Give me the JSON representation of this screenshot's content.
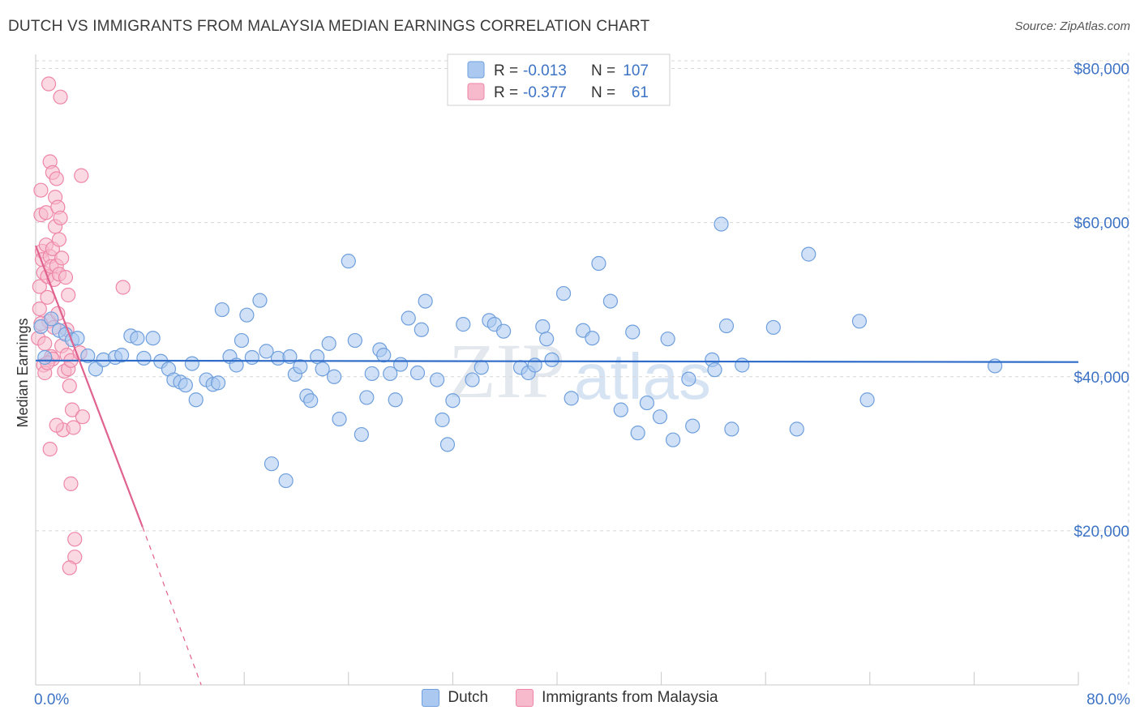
{
  "title": "DUTCH VS IMMIGRANTS FROM MALAYSIA MEDIAN EARNINGS CORRELATION CHART",
  "source": "Source: ZipAtlas.com",
  "watermark": {
    "zip": "ZIP",
    "atlas": "atlas"
  },
  "colors": {
    "dutch_fill": "#aac8f0",
    "dutch_stroke": "#6f9fdc",
    "dutch_line": "#2f6cc9",
    "malaysia_fill": "#f7b9cc",
    "malaysia_stroke": "#ee86a8",
    "malaysia_line": "#e0628f",
    "tick_text": "#3d73c4",
    "grid": "#d8d8d8"
  },
  "legend": {
    "r_label": "R =",
    "n_label": "N =",
    "rows": [
      {
        "r": "-0.013",
        "n": "107"
      },
      {
        "r": "-0.377",
        "n": "61"
      }
    ]
  },
  "bottom_legend": [
    "Dutch",
    "Immigrants from Malaysia"
  ],
  "chart_data": {
    "type": "scatter",
    "title": "DUTCH VS IMMIGRANTS FROM MALAYSIA MEDIAN EARNINGS CORRELATION CHART",
    "xlabel": "",
    "ylabel": "Median Earnings",
    "xlim": [
      0,
      80
    ],
    "ylim": [
      0,
      81000
    ],
    "x_tick_labels": [
      "0.0%",
      "80.0%"
    ],
    "y_ticks": [
      20000,
      40000,
      60000,
      80000
    ],
    "y_tick_labels": [
      "$20,000",
      "$40,000",
      "$60,000",
      "$80,000"
    ],
    "grid": true,
    "series": [
      {
        "name": "Dutch",
        "r": -0.013,
        "n": 107,
        "trend": {
          "x0": 0,
          "y0": 42100,
          "x1": 80,
          "y1": 41900
        },
        "points": [
          [
            0.4,
            46500
          ],
          [
            0.7,
            42500
          ],
          [
            1.2,
            47500
          ],
          [
            1.8,
            46000
          ],
          [
            2.3,
            45500
          ],
          [
            2.8,
            44800
          ],
          [
            3.2,
            45000
          ],
          [
            4.0,
            42700
          ],
          [
            4.6,
            41000
          ],
          [
            5.2,
            42200
          ],
          [
            6.1,
            42500
          ],
          [
            6.6,
            42800
          ],
          [
            7.3,
            45300
          ],
          [
            7.8,
            45000
          ],
          [
            8.3,
            42400
          ],
          [
            9.0,
            45000
          ],
          [
            9.6,
            42000
          ],
          [
            10.2,
            41000
          ],
          [
            10.6,
            39600
          ],
          [
            11.1,
            39300
          ],
          [
            11.5,
            38900
          ],
          [
            12.0,
            41700
          ],
          [
            12.3,
            37000
          ],
          [
            13.1,
            39600
          ],
          [
            13.6,
            39000
          ],
          [
            14.0,
            39200
          ],
          [
            14.3,
            48700
          ],
          [
            14.9,
            42600
          ],
          [
            15.4,
            41500
          ],
          [
            15.8,
            44700
          ],
          [
            16.2,
            48000
          ],
          [
            16.6,
            42500
          ],
          [
            17.2,
            49900
          ],
          [
            17.7,
            43300
          ],
          [
            18.1,
            28700
          ],
          [
            18.6,
            42400
          ],
          [
            19.2,
            26500
          ],
          [
            19.5,
            42600
          ],
          [
            19.9,
            40300
          ],
          [
            20.3,
            41300
          ],
          [
            20.8,
            37500
          ],
          [
            21.1,
            36900
          ],
          [
            21.6,
            42600
          ],
          [
            22.0,
            41000
          ],
          [
            22.5,
            44300
          ],
          [
            22.9,
            40000
          ],
          [
            23.3,
            34500
          ],
          [
            24.0,
            55000
          ],
          [
            24.5,
            44700
          ],
          [
            25.0,
            32500
          ],
          [
            25.4,
            37300
          ],
          [
            25.8,
            40400
          ],
          [
            26.4,
            43500
          ],
          [
            26.7,
            42800
          ],
          [
            27.2,
            40400
          ],
          [
            27.6,
            37000
          ],
          [
            28.0,
            41600
          ],
          [
            28.6,
            47600
          ],
          [
            29.3,
            40500
          ],
          [
            29.6,
            46100
          ],
          [
            29.9,
            49800
          ],
          [
            30.8,
            39600
          ],
          [
            31.2,
            34400
          ],
          [
            31.6,
            31200
          ],
          [
            32.0,
            36900
          ],
          [
            32.8,
            46800
          ],
          [
            33.5,
            39600
          ],
          [
            34.2,
            41200
          ],
          [
            34.8,
            47300
          ],
          [
            35.2,
            46800
          ],
          [
            35.9,
            45900
          ],
          [
            37.2,
            41200
          ],
          [
            37.8,
            40500
          ],
          [
            38.3,
            41500
          ],
          [
            38.9,
            46500
          ],
          [
            39.2,
            44900
          ],
          [
            39.6,
            42200
          ],
          [
            40.5,
            50800
          ],
          [
            41.1,
            37200
          ],
          [
            42.0,
            46000
          ],
          [
            42.7,
            45000
          ],
          [
            43.2,
            54700
          ],
          [
            44.1,
            49800
          ],
          [
            44.9,
            35700
          ],
          [
            45.8,
            45800
          ],
          [
            46.2,
            32700
          ],
          [
            46.9,
            36600
          ],
          [
            47.9,
            34800
          ],
          [
            48.5,
            44900
          ],
          [
            48.9,
            31800
          ],
          [
            50.1,
            39700
          ],
          [
            50.4,
            33600
          ],
          [
            51.9,
            42200
          ],
          [
            52.1,
            40900
          ],
          [
            52.6,
            59800
          ],
          [
            53.0,
            46600
          ],
          [
            53.4,
            33200
          ],
          [
            54.2,
            41500
          ],
          [
            56.6,
            46400
          ],
          [
            58.4,
            33200
          ],
          [
            59.3,
            55900
          ],
          [
            63.2,
            47200
          ],
          [
            63.8,
            37000
          ],
          [
            73.6,
            41400
          ]
        ]
      },
      {
        "name": "Immigrants from Malaysia",
        "r": -0.377,
        "n": 61,
        "trend": {
          "x0": 0,
          "y0": 57000,
          "x1": 8.2,
          "y1": 20500
        },
        "trend_dashed": {
          "x0": 8.2,
          "y0": 20500,
          "x1": 12.7,
          "y1": 0
        },
        "points": [
          [
            0.2,
            45000
          ],
          [
            0.3,
            48800
          ],
          [
            0.3,
            51700
          ],
          [
            0.4,
            64200
          ],
          [
            0.4,
            61000
          ],
          [
            0.5,
            56300
          ],
          [
            0.5,
            55200
          ],
          [
            0.6,
            53500
          ],
          [
            0.6,
            41500
          ],
          [
            0.7,
            44300
          ],
          [
            0.7,
            40500
          ],
          [
            0.8,
            61300
          ],
          [
            0.8,
            57100
          ],
          [
            0.9,
            53000
          ],
          [
            0.9,
            50300
          ],
          [
            1.0,
            47200
          ],
          [
            1.0,
            78000
          ],
          [
            1.1,
            67900
          ],
          [
            1.1,
            55600
          ],
          [
            1.2,
            54300
          ],
          [
            1.2,
            42600
          ],
          [
            1.3,
            66500
          ],
          [
            1.3,
            56600
          ],
          [
            1.4,
            52600
          ],
          [
            1.4,
            46400
          ],
          [
            1.5,
            63300
          ],
          [
            1.5,
            59500
          ],
          [
            1.6,
            65700
          ],
          [
            1.6,
            54400
          ],
          [
            1.7,
            62000
          ],
          [
            1.7,
            48200
          ],
          [
            1.8,
            57800
          ],
          [
            1.8,
            53300
          ],
          [
            1.9,
            76300
          ],
          [
            1.9,
            60600
          ],
          [
            2.0,
            55400
          ],
          [
            2.0,
            44000
          ],
          [
            2.1,
            33100
          ],
          [
            2.2,
            40700
          ],
          [
            2.3,
            52900
          ],
          [
            2.4,
            42800
          ],
          [
            2.4,
            46100
          ],
          [
            2.5,
            50600
          ],
          [
            2.5,
            41000
          ],
          [
            2.6,
            38800
          ],
          [
            2.7,
            42100
          ],
          [
            2.7,
            26100
          ],
          [
            2.8,
            35700
          ],
          [
            2.9,
            33400
          ],
          [
            3.0,
            18900
          ],
          [
            3.0,
            16600
          ],
          [
            2.6,
            15200
          ],
          [
            3.4,
            43100
          ],
          [
            3.6,
            34800
          ],
          [
            3.5,
            66100
          ],
          [
            1.1,
            30600
          ],
          [
            1.3,
            42300
          ],
          [
            6.7,
            51600
          ],
          [
            0.4,
            46900
          ],
          [
            0.9,
            41800
          ],
          [
            1.6,
            33700
          ]
        ]
      }
    ]
  }
}
